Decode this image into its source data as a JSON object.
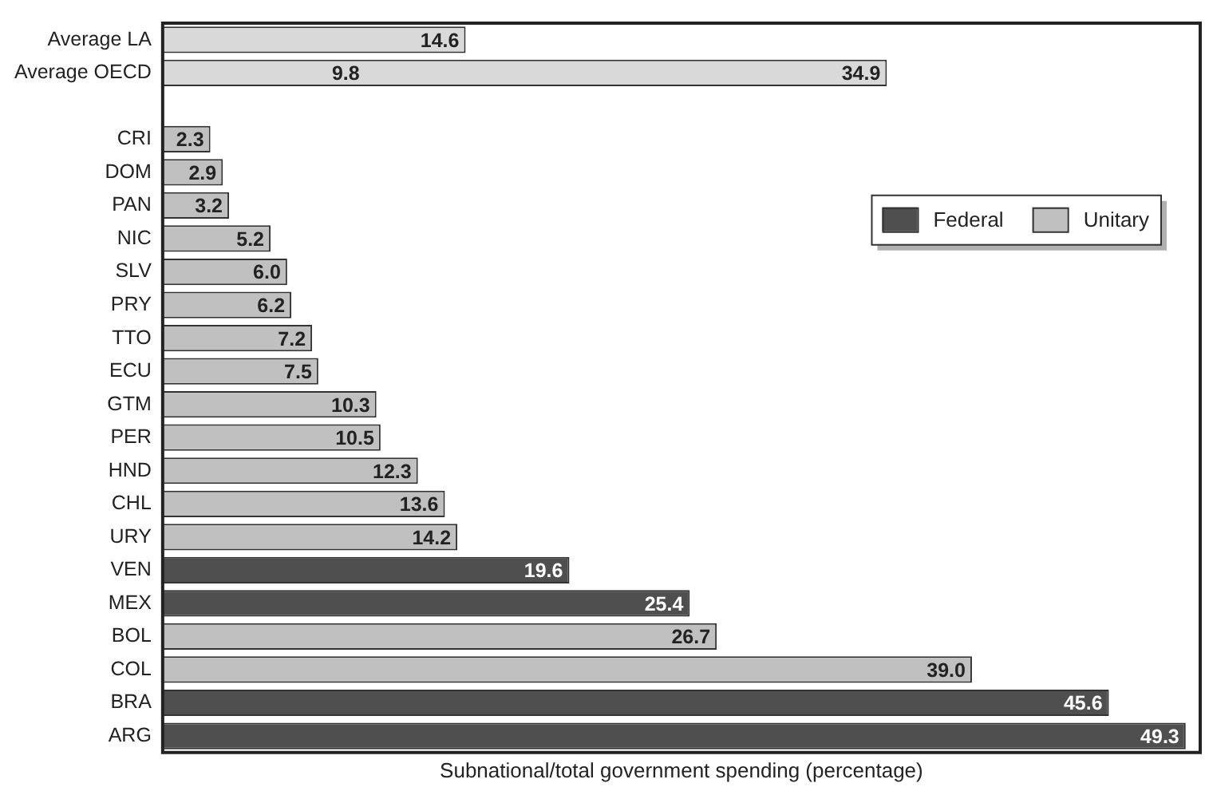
{
  "chart_data": {
    "type": "bar",
    "orientation": "horizontal",
    "xlabel": "Subnational/total government spending (percentage)",
    "categories": [
      "Average LA",
      "Average OECD",
      null,
      "CRI",
      "DOM",
      "PAN",
      "NIC",
      "SLV",
      "PRY",
      "TTO",
      "ECU",
      "GTM",
      "PER",
      "HND",
      "CHL",
      "URY",
      "VEN",
      "MEX",
      "BOL",
      "COL",
      "BRA",
      "ARG"
    ],
    "series": [
      {
        "color": "#d9d9d9",
        "values": [
          14.6,
          34.9,
          null,
          null,
          null,
          null,
          null,
          null,
          null,
          null,
          null,
          null,
          null,
          null,
          null,
          null,
          null,
          null,
          null,
          null,
          null,
          null
        ],
        "value_labels": [
          "14.6",
          "34.9",
          null,
          null,
          null,
          null,
          null,
          null,
          null,
          null,
          null,
          null,
          null,
          null,
          null,
          null,
          null,
          null,
          null,
          null,
          null,
          null
        ]
      },
      {
        "name": "Federal",
        "color": "#4f4f4f",
        "values": [
          null,
          null,
          null,
          null,
          null,
          null,
          null,
          null,
          null,
          null,
          null,
          null,
          null,
          null,
          null,
          null,
          19.6,
          25.4,
          null,
          null,
          45.6,
          49.3
        ],
        "value_labels": [
          null,
          null,
          null,
          null,
          null,
          null,
          null,
          null,
          null,
          null,
          null,
          null,
          null,
          null,
          null,
          null,
          "19.6",
          "25.4",
          null,
          null,
          "45.6",
          "49.3"
        ]
      },
      {
        "name": "Unitary",
        "color": "#c0c0c0",
        "values": [
          null,
          null,
          null,
          2.3,
          2.9,
          3.2,
          5.2,
          6.0,
          6.2,
          7.2,
          7.5,
          10.3,
          10.5,
          12.3,
          13.6,
          14.2,
          null,
          null,
          26.7,
          39.0,
          null,
          null
        ],
        "value_labels": [
          null,
          null,
          null,
          "2.3",
          "2.9",
          "3.2",
          "5.2",
          "6.0",
          "6.2",
          "7.2",
          "7.5",
          "10.3",
          "10.5",
          "12.3",
          "13.6",
          "14.2",
          null,
          null,
          "26.7",
          "39.0",
          null,
          null
        ]
      }
    ],
    "annotations": [
      {
        "text": "9.8",
        "x": 9.8,
        "y": "Average OECD"
      }
    ],
    "legend": "top right",
    "tick_labels": "y"
  }
}
